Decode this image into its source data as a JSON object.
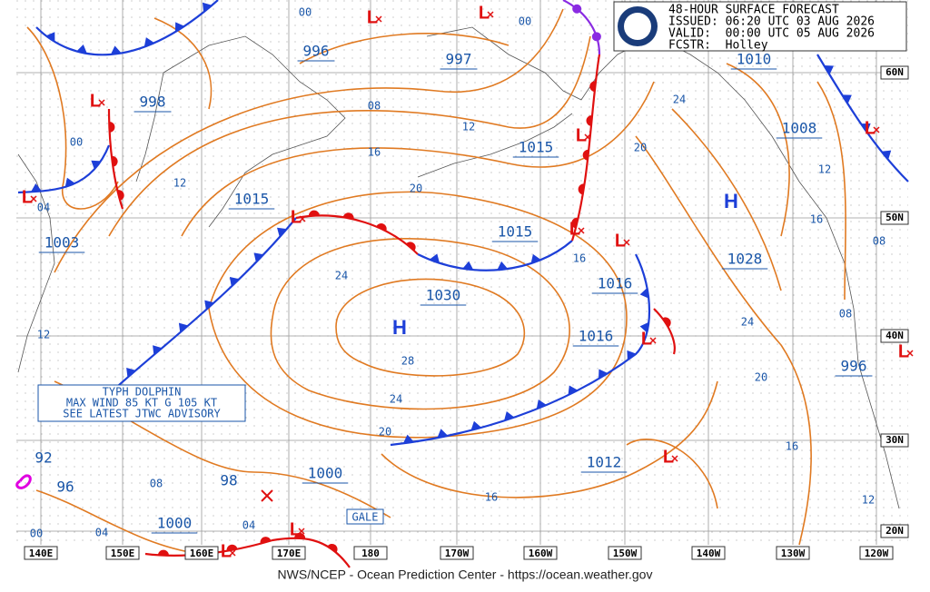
{
  "header": {
    "lines": [
      "48-HOUR SURFACE FORECAST",
      "ISSUED: 06:20 UTC 03 AUG 2026",
      "VALID:  00:00 UTC 05 AUG 2026",
      "FCSTR:  Holley"
    ]
  },
  "symbols": {
    "high": "H",
    "low": "L"
  },
  "pressure_centers": [
    "996",
    "997",
    "998",
    "1010",
    "1015",
    "1015",
    "1015",
    "1003",
    "1030",
    "1016",
    "1016",
    "1028",
    "1008",
    "996",
    "1012",
    "1000",
    "1000"
  ],
  "tropical_pressures": [
    "98",
    "92",
    "96"
  ],
  "isobar_labels": [
    "00",
    "00",
    "00",
    "08",
    "12",
    "16",
    "20",
    "12",
    "04",
    "24",
    "28",
    "24",
    "20",
    "20",
    "24",
    "24",
    "20",
    "16",
    "12",
    "16",
    "08",
    "08",
    "12",
    "16",
    "16",
    "08",
    "04",
    "04",
    "00",
    "12"
  ],
  "latitudes": [
    "60N",
    "50N",
    "40N",
    "30N",
    "20N"
  ],
  "longitudes": [
    "140E",
    "150E",
    "160E",
    "170E",
    "180",
    "170W",
    "160W",
    "150W",
    "140W",
    "130W",
    "120W"
  ],
  "typhoon_box": [
    "TYPH DOLPHIN",
    "MAX WIND 85 KT G 105 KT",
    "SEE LATEST JTWC ADVISORY"
  ],
  "gale": "GALE",
  "footer": "NWS/NCEP - Ocean Prediction Center - https://ocean.weather.gov"
}
